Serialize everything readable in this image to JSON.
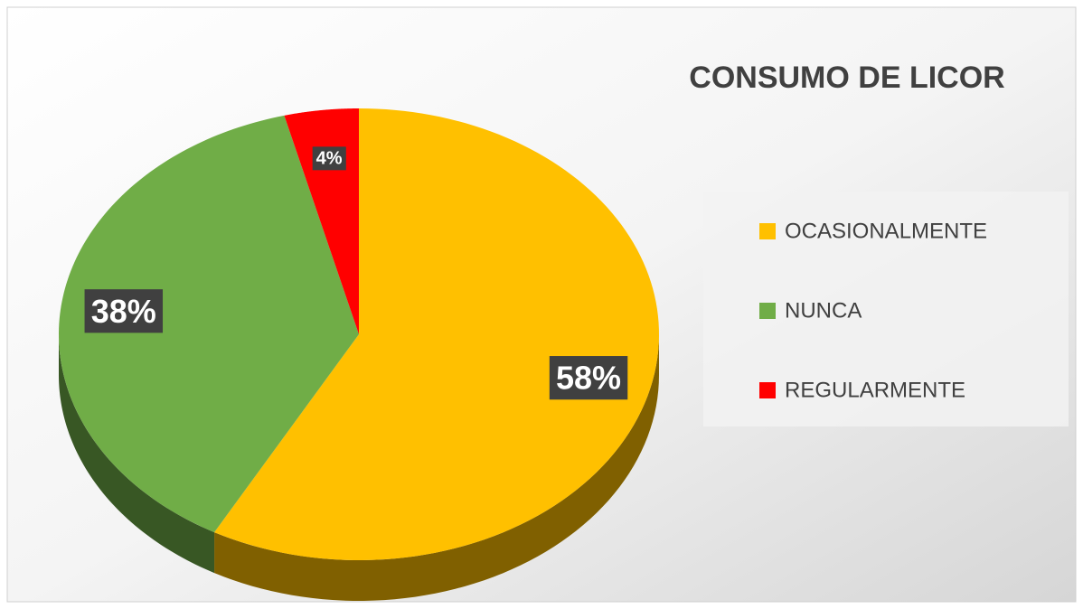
{
  "chart_data": {
    "type": "pie",
    "title": "CONSUMO DE LICOR",
    "categories": [
      "OCASIONALMENTE",
      "NUNCA",
      "REGULARMENTE"
    ],
    "values": [
      58,
      38,
      4
    ],
    "value_labels": [
      "58%",
      "38%",
      "4%"
    ],
    "colors": [
      "#FFC000",
      "#70AD47",
      "#FF0000"
    ],
    "legend": "right"
  }
}
